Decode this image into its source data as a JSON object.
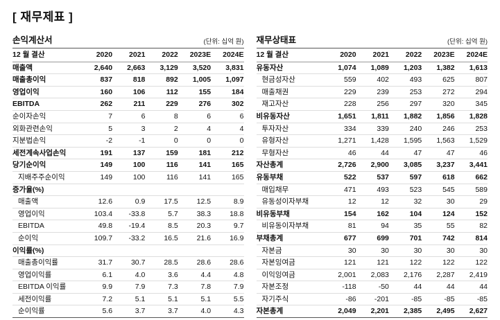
{
  "page": {
    "title": "[ 재무제표 ]"
  },
  "income_statement": {
    "title": "손익계산서",
    "unit": "(단위: 십억 원)",
    "columns": [
      "12 월 결산",
      "2020",
      "2021",
      "2022",
      "2023E",
      "2024E"
    ],
    "rows": [
      {
        "label": "매출액",
        "bold": true,
        "indent": false,
        "values": [
          "2,640",
          "2,663",
          "3,129",
          "3,520",
          "3,831"
        ]
      },
      {
        "label": "매출총이익",
        "bold": true,
        "indent": false,
        "values": [
          "837",
          "818",
          "892",
          "1,005",
          "1,097"
        ]
      },
      {
        "label": "영업이익",
        "bold": true,
        "indent": false,
        "values": [
          "160",
          "106",
          "112",
          "155",
          "184"
        ]
      },
      {
        "label": "EBITDA",
        "bold": true,
        "indent": false,
        "values": [
          "262",
          "211",
          "229",
          "276",
          "302"
        ]
      },
      {
        "label": "순이자손익",
        "bold": false,
        "indent": false,
        "values": [
          "7",
          "6",
          "8",
          "6",
          "6"
        ]
      },
      {
        "label": "외화관련손익",
        "bold": false,
        "indent": false,
        "values": [
          "5",
          "3",
          "2",
          "4",
          "4"
        ]
      },
      {
        "label": "지분법손익",
        "bold": false,
        "indent": false,
        "values": [
          "-2",
          "-1",
          "0",
          "0",
          "0"
        ]
      },
      {
        "label": "세전계속사업손익",
        "bold": true,
        "indent": false,
        "values": [
          "191",
          "137",
          "159",
          "181",
          "212"
        ]
      },
      {
        "label": "당기순이익",
        "bold": true,
        "indent": false,
        "values": [
          "149",
          "100",
          "116",
          "141",
          "165"
        ]
      },
      {
        "label": "지배주주순이익",
        "bold": false,
        "indent": true,
        "values": [
          "149",
          "100",
          "116",
          "141",
          "165"
        ]
      },
      {
        "label": "증가율(%)",
        "bold": true,
        "indent": false,
        "values": [
          "",
          "",
          "",
          "",
          ""
        ]
      },
      {
        "label": "매출액",
        "bold": false,
        "indent": true,
        "values": [
          "12.6",
          "0.9",
          "17.5",
          "12.5",
          "8.9"
        ]
      },
      {
        "label": "영업이익",
        "bold": false,
        "indent": true,
        "values": [
          "103.4",
          "-33.8",
          "5.7",
          "38.3",
          "18.8"
        ]
      },
      {
        "label": "EBITDA",
        "bold": false,
        "indent": true,
        "values": [
          "49.8",
          "-19.4",
          "8.5",
          "20.3",
          "9.7"
        ]
      },
      {
        "label": "순이익",
        "bold": false,
        "indent": true,
        "values": [
          "109.7",
          "-33.2",
          "16.5",
          "21.6",
          "16.9"
        ]
      },
      {
        "label": "이익률(%)",
        "bold": true,
        "indent": false,
        "values": [
          "",
          "",
          "",
          "",
          ""
        ]
      },
      {
        "label": "매출총이익률",
        "bold": false,
        "indent": true,
        "values": [
          "31.7",
          "30.7",
          "28.5",
          "28.6",
          "28.6"
        ]
      },
      {
        "label": "영업이익률",
        "bold": false,
        "indent": true,
        "values": [
          "6.1",
          "4.0",
          "3.6",
          "4.4",
          "4.8"
        ]
      },
      {
        "label": "EBITDA 이익률",
        "bold": false,
        "indent": true,
        "values": [
          "9.9",
          "7.9",
          "7.3",
          "7.8",
          "7.9"
        ]
      },
      {
        "label": "세전이익률",
        "bold": false,
        "indent": true,
        "values": [
          "7.2",
          "5.1",
          "5.1",
          "5.1",
          "5.5"
        ]
      },
      {
        "label": "순이익률",
        "bold": false,
        "indent": true,
        "values": [
          "5.6",
          "3.7",
          "3.7",
          "4.0",
          "4.3"
        ]
      }
    ]
  },
  "balance_sheet": {
    "title": "재무상태표",
    "unit": "(단위: 십억 원)",
    "columns": [
      "12 월 결산",
      "2020",
      "2021",
      "2022",
      "2023E",
      "2024E"
    ],
    "rows": [
      {
        "label": "유동자산",
        "bold": true,
        "indent": false,
        "values": [
          "1,074",
          "1,089",
          "1,203",
          "1,382",
          "1,613"
        ]
      },
      {
        "label": "현금성자산",
        "bold": false,
        "indent": true,
        "values": [
          "559",
          "402",
          "493",
          "625",
          "807"
        ]
      },
      {
        "label": "매출채권",
        "bold": false,
        "indent": true,
        "values": [
          "229",
          "239",
          "253",
          "272",
          "294"
        ]
      },
      {
        "label": "재고자산",
        "bold": false,
        "indent": true,
        "values": [
          "228",
          "256",
          "297",
          "320",
          "345"
        ]
      },
      {
        "label": "비유동자산",
        "bold": true,
        "indent": false,
        "values": [
          "1,651",
          "1,811",
          "1,882",
          "1,856",
          "1,828"
        ]
      },
      {
        "label": "투자자산",
        "bold": false,
        "indent": true,
        "values": [
          "334",
          "339",
          "240",
          "246",
          "253"
        ]
      },
      {
        "label": "유형자산",
        "bold": false,
        "indent": true,
        "values": [
          "1,271",
          "1,428",
          "1,595",
          "1,563",
          "1,529"
        ]
      },
      {
        "label": "무형자산",
        "bold": false,
        "indent": true,
        "values": [
          "46",
          "44",
          "47",
          "47",
          "46"
        ]
      },
      {
        "label": "자산총계",
        "bold": true,
        "indent": false,
        "values": [
          "2,726",
          "2,900",
          "3,085",
          "3,237",
          "3,441"
        ]
      },
      {
        "label": "유동부채",
        "bold": true,
        "indent": false,
        "values": [
          "522",
          "537",
          "597",
          "618",
          "662"
        ]
      },
      {
        "label": "매입채무",
        "bold": false,
        "indent": true,
        "values": [
          "471",
          "493",
          "523",
          "545",
          "589"
        ]
      },
      {
        "label": "유동성이자부채",
        "bold": false,
        "indent": true,
        "values": [
          "12",
          "12",
          "32",
          "30",
          "29"
        ]
      },
      {
        "label": "비유동부채",
        "bold": true,
        "indent": false,
        "values": [
          "154",
          "162",
          "104",
          "124",
          "152"
        ]
      },
      {
        "label": "비유동이자부채",
        "bold": false,
        "indent": true,
        "values": [
          "81",
          "94",
          "35",
          "55",
          "82"
        ]
      },
      {
        "label": "부채총계",
        "bold": true,
        "indent": false,
        "values": [
          "677",
          "699",
          "701",
          "742",
          "814"
        ]
      },
      {
        "label": "자본금",
        "bold": false,
        "indent": true,
        "values": [
          "30",
          "30",
          "30",
          "30",
          "30"
        ]
      },
      {
        "label": "자본잉여금",
        "bold": false,
        "indent": true,
        "values": [
          "121",
          "121",
          "122",
          "122",
          "122"
        ]
      },
      {
        "label": "이익잉여금",
        "bold": false,
        "indent": true,
        "values": [
          "2,001",
          "2,083",
          "2,176",
          "2,287",
          "2,419"
        ]
      },
      {
        "label": "자본조정",
        "bold": false,
        "indent": true,
        "values": [
          "-118",
          "-50",
          "44",
          "44",
          "44"
        ]
      },
      {
        "label": "자기주식",
        "bold": false,
        "indent": true,
        "values": [
          "-86",
          "-201",
          "-85",
          "-85",
          "-85"
        ]
      },
      {
        "label": "자본총계",
        "bold": true,
        "indent": false,
        "values": [
          "2,049",
          "2,201",
          "2,385",
          "2,495",
          "2,627"
        ]
      }
    ]
  }
}
